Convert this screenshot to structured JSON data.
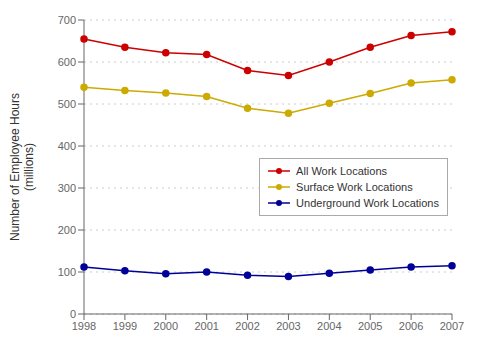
{
  "chart_data": {
    "type": "line",
    "categories": [
      "1998",
      "1999",
      "2000",
      "2001",
      "2002",
      "2003",
      "2004",
      "2005",
      "2006",
      "2007"
    ],
    "series": [
      {
        "name": "All Work Locations",
        "color": "#cc0000",
        "values": [
          655,
          635,
          622,
          618,
          580,
          568,
          600,
          635,
          663,
          672
        ]
      },
      {
        "name": "Surface Work Locations",
        "color": "#ccaa00",
        "values": [
          540,
          532,
          526,
          518,
          490,
          478,
          502,
          525,
          550,
          558
        ]
      },
      {
        "name": "Underground Work Locations",
        "color": "#000099",
        "values": [
          112,
          103,
          96,
          100,
          92,
          89,
          97,
          105,
          112,
          115
        ]
      }
    ],
    "ylabel": "Number of Employee Hours\n(millions)",
    "ylim": [
      0,
      700
    ],
    "yticks": [
      0,
      100,
      200,
      300,
      400,
      500,
      600,
      700
    ],
    "grid": true,
    "legend": "center right",
    "marker": "circle"
  }
}
